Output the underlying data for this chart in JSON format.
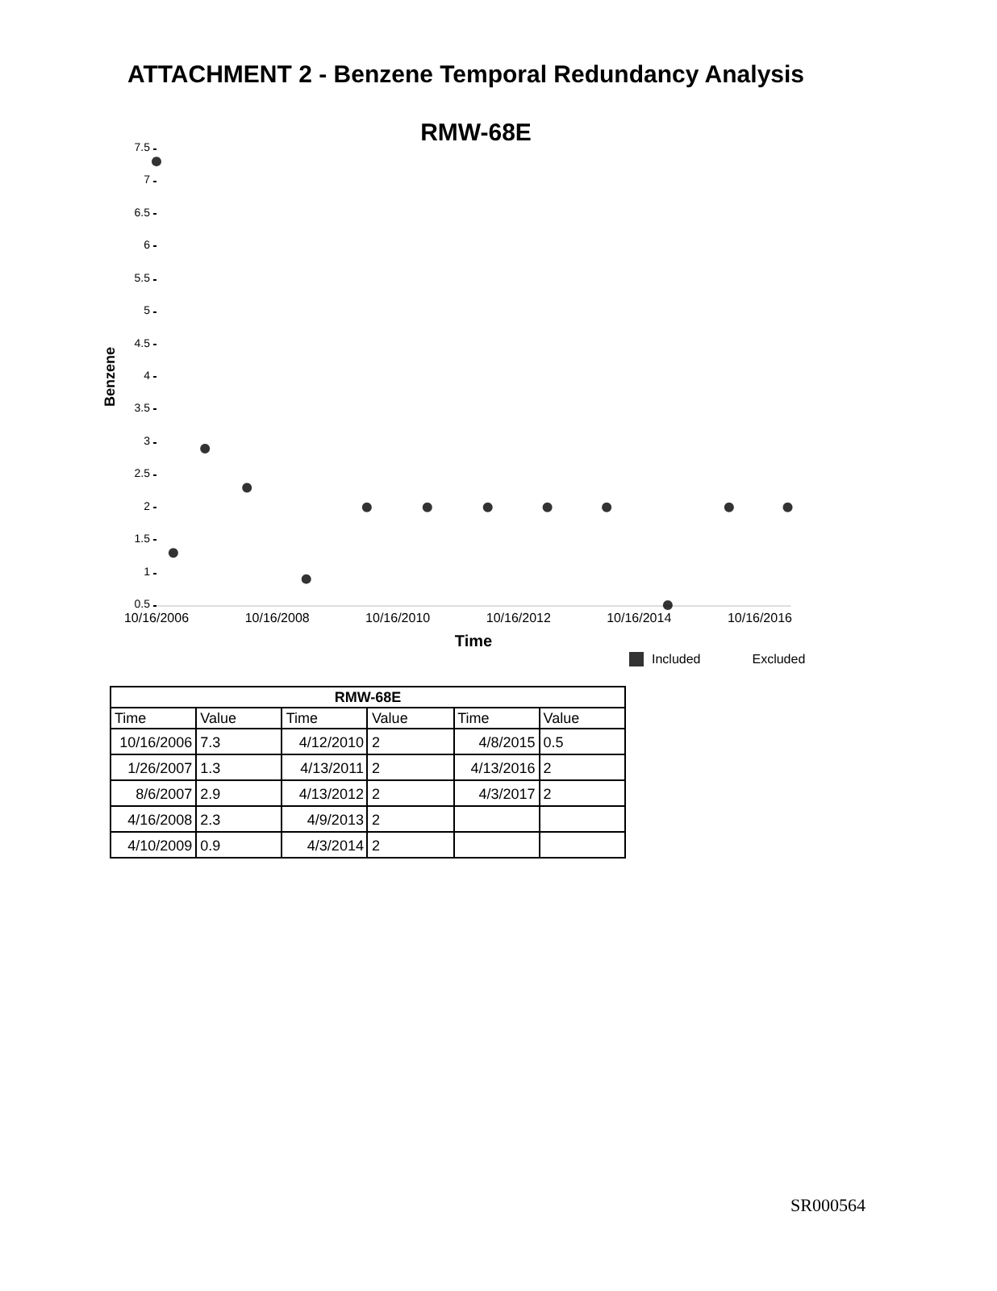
{
  "chart_data": [
    {
      "type": "scatter",
      "title": "ATTACHMENT 2 - Benzene Temporal Redundancy Analysis",
      "subtitle": "RMW-68E",
      "xlabel": "Time",
      "ylabel": "Benzene",
      "x": [
        "2006-10-16",
        "2007-01-26",
        "2007-08-06",
        "2008-04-16",
        "2009-04-10",
        "2010-04-12",
        "2011-04-13",
        "2012-04-13",
        "2013-04-09",
        "2014-04-03",
        "2015-04-08",
        "2016-04-13",
        "2017-04-03"
      ],
      "series": [
        {
          "name": "Included",
          "color": "#000000",
          "values": [
            7.3,
            1.3,
            2.9,
            2.3,
            0.9,
            2,
            2,
            2,
            2,
            2,
            0.5,
            2,
            2
          ]
        },
        {
          "name": "Excluded",
          "values": [
            null,
            null,
            null,
            null,
            null,
            null,
            null,
            null,
            null,
            null,
            null,
            null,
            null
          ]
        }
      ],
      "xlim": [
        "2006-10-16",
        "2017-04-20"
      ],
      "xticks": [
        {
          "value": "2006-10-16",
          "label": "10/16/2006"
        },
        {
          "value": "2008-10-16",
          "label": "10/16/2008"
        },
        {
          "value": "2010-10-16",
          "label": "10/16/2010"
        },
        {
          "value": "2012-10-16",
          "label": "10/16/2012"
        },
        {
          "value": "2014-10-16",
          "label": "10/16/2014"
        },
        {
          "value": "2016-10-16",
          "label": "10/16/2016"
        }
      ],
      "ylim": [
        0.5,
        7.5
      ],
      "yticks": [
        0.5,
        1,
        1.5,
        2,
        2.5,
        3,
        3.5,
        4,
        4.5,
        5,
        5.5,
        6,
        6.5,
        7,
        7.5
      ],
      "grid": false,
      "legend": "bottom right",
      "marker": "circle",
      "annotations": [
        "SR000564"
      ]
    },
    {
      "type": "other",
      "title": "RMW-68E",
      "xlabel": "Time",
      "ylabel": "Value",
      "categories": [
        "10/16/2006",
        "1/26/2007",
        "8/6/2007",
        "4/16/2008",
        "4/10/2009",
        "4/12/2010",
        "4/13/2011",
        "4/13/2012",
        "4/9/2013",
        "4/3/2014",
        "4/8/2015",
        "4/13/2016",
        "4/3/2017"
      ],
      "values": [
        7.3,
        1.3,
        2.9,
        2.3,
        0.9,
        2,
        2,
        2,
        2,
        2,
        0.5,
        2,
        2
      ],
      "data_labels": true
    }
  ]
}
